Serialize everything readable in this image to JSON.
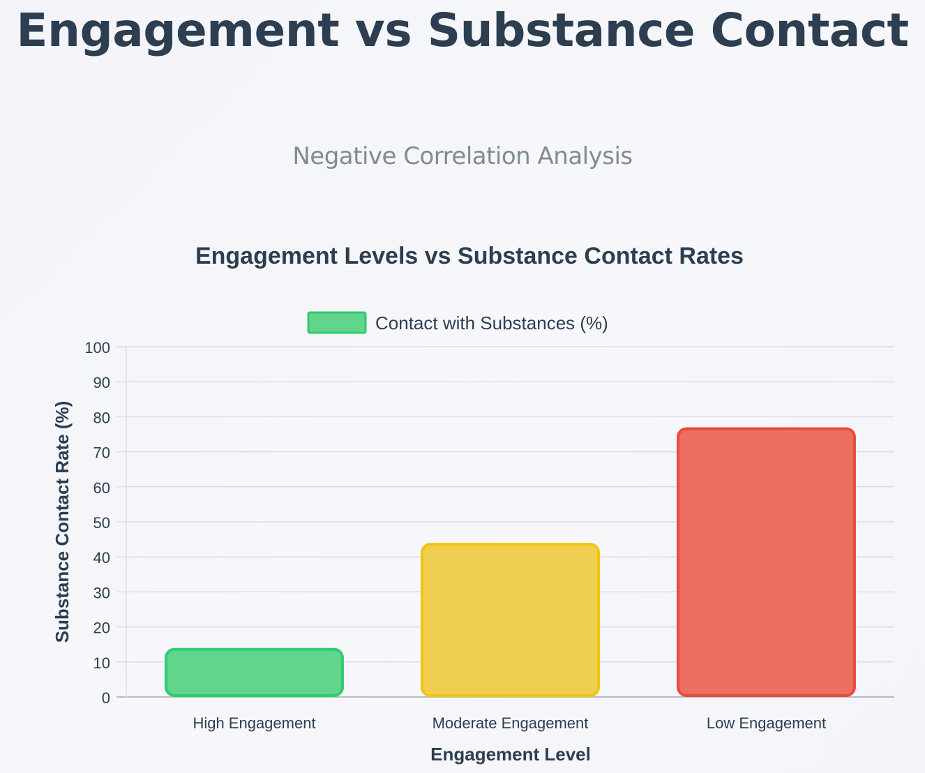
{
  "header": {
    "title": "Engagement vs Substance Contact",
    "subtitle": "Negative Correlation Analysis"
  },
  "chart_data": {
    "type": "bar",
    "title": "Engagement Levels vs Substance Contact Rates",
    "xlabel": "Engagement Level",
    "ylabel": "Substance Contact Rate (%)",
    "categories": [
      "High Engagement",
      "Moderate Engagement",
      "Low Engagement"
    ],
    "series": [
      {
        "name": "Contact with Substances (%)",
        "values": [
          14,
          44,
          77
        ]
      }
    ],
    "ylim": [
      0,
      100
    ],
    "yticks": [
      0,
      10,
      20,
      30,
      40,
      50,
      60,
      70,
      80,
      90,
      100
    ],
    "grid": true,
    "legend_position": "top-center",
    "bar_fill_colors": [
      "#62d48b",
      "#f0cf50",
      "#ec6f62"
    ],
    "bar_border_colors": [
      "#2ecc71",
      "#f1c40f",
      "#e74c3c"
    ],
    "legend_fill_color": "#62d48b",
    "legend_border_color": "#2ecc71",
    "text_color": "#2c3e50",
    "grid_color": "#dcdde3"
  }
}
